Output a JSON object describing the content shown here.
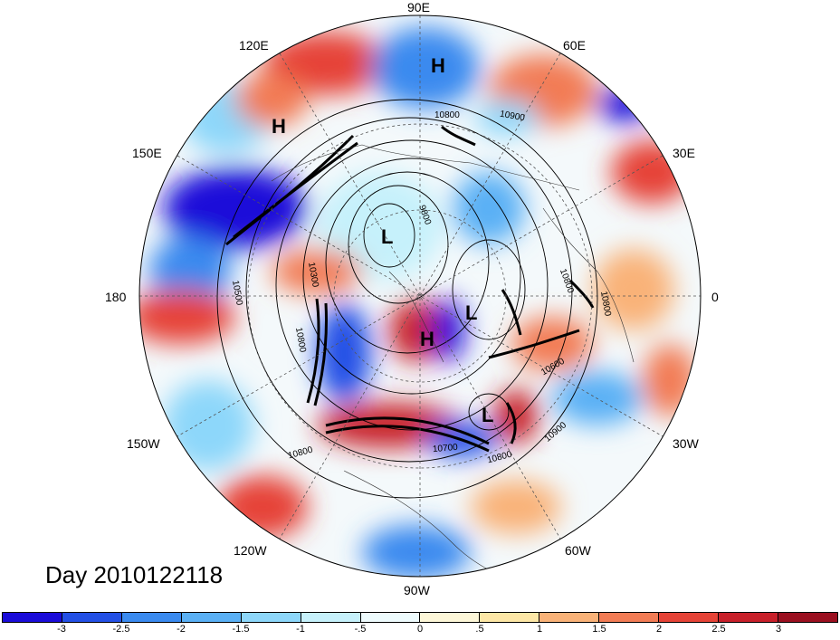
{
  "day_label": "Day 2010122118",
  "longitude_labels": [
    {
      "key": "90E",
      "text": "90E"
    },
    {
      "key": "60E",
      "text": "60E"
    },
    {
      "key": "30E",
      "text": "30E"
    },
    {
      "key": "0",
      "text": "0"
    },
    {
      "key": "30W",
      "text": "30W"
    },
    {
      "key": "60W",
      "text": "60W"
    },
    {
      "key": "90W",
      "text": "90W"
    },
    {
      "key": "120W",
      "text": "120W"
    },
    {
      "key": "150W",
      "text": "150W"
    },
    {
      "key": "180",
      "text": "180"
    },
    {
      "key": "150E",
      "text": "150E"
    },
    {
      "key": "120E",
      "text": "120E"
    }
  ],
  "pressure_centers": [
    "H",
    "H",
    "L",
    "L",
    "H",
    "L"
  ],
  "contour_labels": [
    "10800",
    "10900",
    "9800",
    "10300",
    "10500",
    "10800",
    "10800",
    "10700",
    "10800",
    "10900",
    "10600",
    "10800",
    "10800"
  ],
  "colorbar": {
    "colors": [
      "#1a0cd9",
      "#2350e6",
      "#3a8aef",
      "#5ab0f5",
      "#8dd7fa",
      "#c6f1fb",
      "#eefbfd",
      "#fdf7d8",
      "#fde7a6",
      "#f9b278",
      "#f27c55",
      "#e64337",
      "#c8202a",
      "#9b1020"
    ],
    "tick_labels": [
      "-3",
      "-2.5",
      "-2",
      "-1.5",
      "-1",
      "-.5",
      "0",
      ".5",
      "1",
      "1.5",
      "2",
      "2.5",
      "3"
    ]
  }
}
